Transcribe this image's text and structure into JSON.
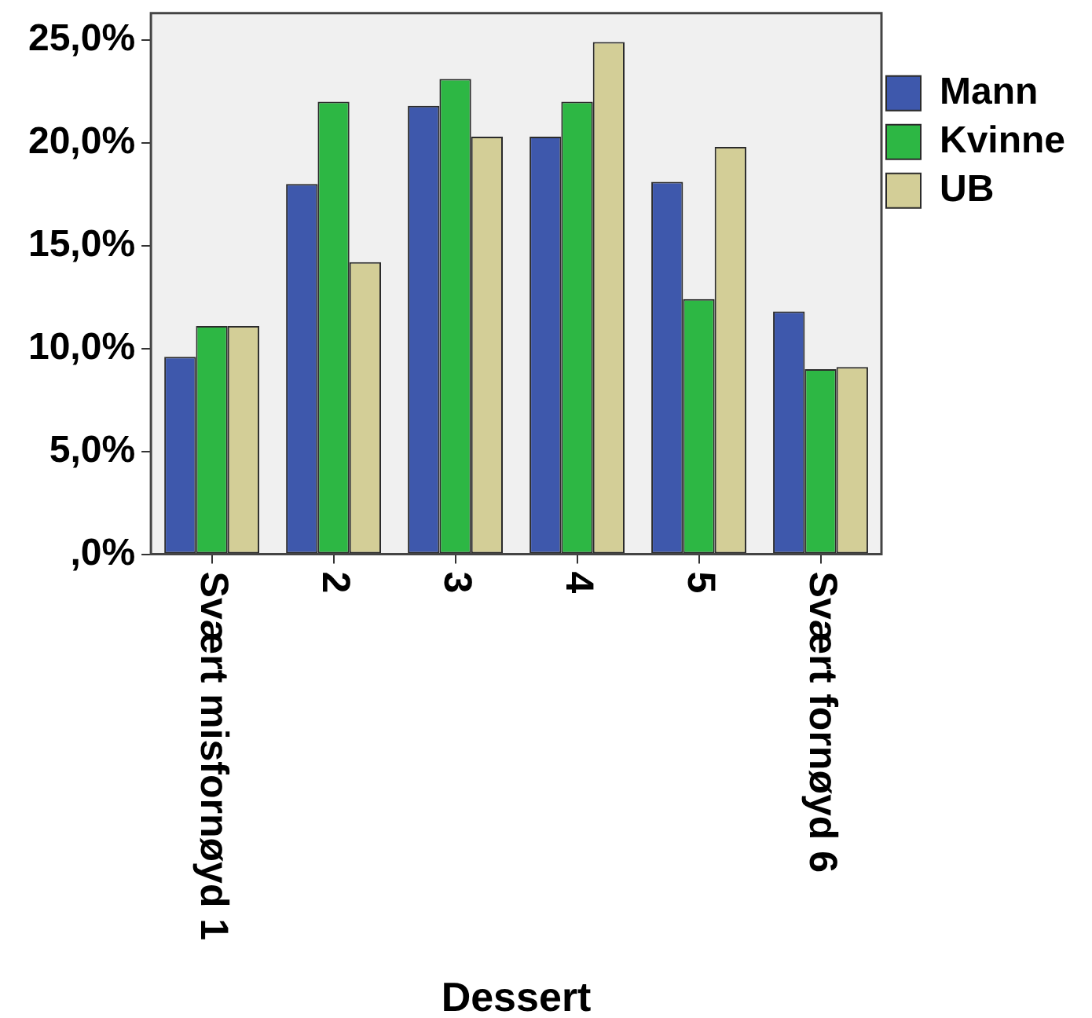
{
  "chart_data": {
    "type": "bar",
    "xlabel": "Dessert",
    "categories": [
      "Svært misfornøyd 1",
      "2",
      "3",
      "4",
      "5",
      "Svært fornøyd 6"
    ],
    "series": [
      {
        "name": "Mann",
        "color": "#3e58ac",
        "values": [
          9.6,
          18.0,
          21.8,
          20.3,
          18.1,
          11.8
        ]
      },
      {
        "name": "Kvinne",
        "color": "#2db744",
        "values": [
          11.1,
          22.0,
          23.1,
          22.0,
          12.4,
          9.0
        ]
      },
      {
        "name": "UB",
        "color": "#d3ce97",
        "values": [
          11.1,
          14.2,
          20.3,
          24.9,
          19.8,
          9.1
        ]
      }
    ],
    "ylim": [
      0,
      26.3
    ],
    "yticks": [
      {
        "value": 0,
        "label": ",0%"
      },
      {
        "value": 5,
        "label": "5,0%"
      },
      {
        "value": 10,
        "label": "10,0%"
      },
      {
        "value": 15,
        "label": "15,0%"
      },
      {
        "value": 20,
        "label": "20,0%"
      },
      {
        "value": 25,
        "label": "25,0%"
      }
    ],
    "grid": false,
    "legend": "right"
  }
}
